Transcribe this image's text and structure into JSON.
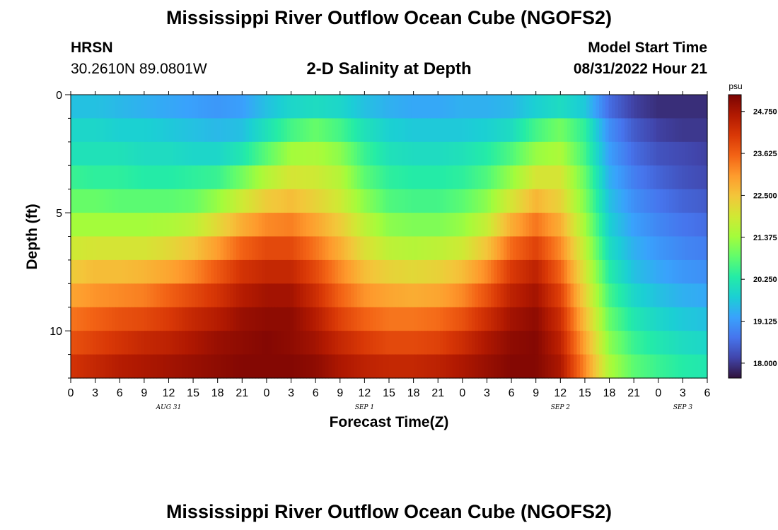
{
  "header": {
    "title": "Mississippi River Outflow Ocean Cube (NGOFS2)",
    "station": "HRSN",
    "coords": "30.2610N  89.0801W",
    "chart_title": "2-D Salinity at Depth",
    "model_label": "Model Start Time",
    "model_time": "08/31/2022 Hour 21"
  },
  "footer": {
    "title": "Mississippi River Outflow Ocean Cube (NGOFS2)"
  },
  "colors": {
    "scale": [
      "#30123b",
      "#4145ab",
      "#4675ed",
      "#39a2fc",
      "#1bcfd4",
      "#24eca6",
      "#61fc6c",
      "#a4fc3b",
      "#d1e834",
      "#f3c63a",
      "#fe9b2d",
      "#f36315",
      "#d93806",
      "#b11901",
      "#7a0403"
    ]
  },
  "chart_data": {
    "type": "heatmap",
    "title": "2-D Salinity at Depth",
    "xlabel": "Forecast Time(Z)",
    "ylabel": "Depth (ft)",
    "x_tick_labels": [
      "0",
      "3",
      "6",
      "9",
      "12",
      "15",
      "18",
      "21",
      "0",
      "3",
      "6",
      "9",
      "12",
      "15",
      "18",
      "21",
      "0",
      "3",
      "6",
      "9",
      "12",
      "15",
      "18",
      "21",
      "0",
      "3",
      "6"
    ],
    "x_range_hours": [
      0,
      78
    ],
    "date_labels": [
      {
        "label": "AUG 31",
        "hour": 12
      },
      {
        "label": "SEP 1",
        "hour": 36
      },
      {
        "label": "SEP 2",
        "hour": 60
      },
      {
        "label": "SEP 3",
        "hour": 75
      }
    ],
    "y_ticks": [
      "0",
      "5",
      "10"
    ],
    "y_range_ft": [
      0,
      12
    ],
    "colorbar": {
      "unit": "psu",
      "ticks": [
        "24.750",
        "23.625",
        "22.500",
        "21.375",
        "20.250",
        "19.125",
        "18.000"
      ],
      "range": [
        17.6,
        25.2
      ]
    },
    "depth_layers_ft": [
      0.5,
      1.5,
      2.5,
      3.5,
      4.5,
      5.5,
      6.5,
      7.5,
      8.5,
      9.5,
      10.5,
      11.5
    ],
    "time_hours": [
      0,
      3,
      6,
      9,
      12,
      15,
      18,
      21,
      24,
      27,
      30,
      33,
      36,
      39,
      42,
      45,
      48,
      51,
      54,
      57,
      60,
      63,
      66,
      69,
      72,
      75,
      78
    ],
    "values": [
      [
        19.6,
        19.6,
        19.5,
        19.4,
        19.3,
        19.2,
        19.1,
        19.2,
        19.6,
        19.9,
        20.0,
        19.9,
        19.6,
        19.4,
        19.3,
        19.3,
        19.4,
        19.4,
        19.5,
        19.8,
        20.0,
        19.7,
        18.6,
        18.1,
        17.9,
        17.9,
        17.9
      ],
      [
        19.9,
        19.9,
        19.8,
        19.8,
        19.7,
        19.6,
        19.5,
        19.6,
        20.1,
        20.6,
        20.9,
        20.6,
        20.1,
        19.8,
        19.7,
        19.7,
        19.7,
        19.8,
        20.0,
        20.6,
        21.0,
        20.4,
        19.0,
        18.4,
        18.1,
        18.0,
        18.0
      ],
      [
        20.1,
        20.1,
        20.1,
        20.0,
        20.0,
        19.9,
        19.9,
        20.2,
        20.8,
        21.4,
        21.5,
        21.2,
        20.5,
        20.1,
        20.0,
        20.0,
        20.1,
        20.3,
        20.7,
        21.3,
        21.5,
        20.6,
        19.2,
        18.6,
        18.3,
        18.2,
        18.1
      ],
      [
        20.5,
        20.4,
        20.4,
        20.3,
        20.3,
        20.4,
        20.5,
        21.0,
        21.6,
        22.0,
        21.9,
        21.6,
        20.8,
        20.4,
        20.3,
        20.3,
        20.4,
        20.7,
        21.3,
        22.0,
        22.0,
        20.9,
        19.4,
        18.8,
        18.5,
        18.3,
        18.2
      ],
      [
        20.9,
        20.9,
        20.8,
        20.8,
        20.8,
        20.9,
        21.3,
        21.9,
        22.4,
        22.6,
        22.3,
        21.9,
        21.2,
        20.7,
        20.6,
        20.6,
        20.8,
        21.2,
        22.0,
        22.7,
        22.3,
        21.1,
        19.6,
        19.0,
        18.7,
        18.5,
        18.4
      ],
      [
        21.4,
        21.4,
        21.4,
        21.4,
        21.5,
        21.7,
        22.2,
        22.8,
        23.2,
        23.3,
        22.9,
        22.4,
        21.7,
        21.2,
        21.1,
        21.1,
        21.3,
        21.8,
        22.8,
        23.4,
        22.8,
        21.4,
        19.8,
        19.2,
        18.9,
        18.7,
        18.6
      ],
      [
        21.9,
        22.0,
        22.0,
        22.0,
        22.2,
        22.5,
        23.0,
        23.6,
        23.9,
        23.9,
        23.4,
        22.8,
        22.1,
        21.7,
        21.6,
        21.7,
        21.9,
        22.5,
        23.5,
        24.0,
        23.2,
        21.7,
        20.0,
        19.4,
        19.1,
        18.9,
        18.8
      ],
      [
        22.4,
        22.6,
        22.6,
        22.7,
        22.9,
        23.2,
        23.7,
        24.2,
        24.4,
        24.4,
        23.9,
        23.2,
        22.6,
        22.3,
        22.2,
        22.3,
        22.6,
        23.2,
        24.1,
        24.5,
        23.6,
        22.0,
        20.3,
        19.6,
        19.3,
        19.1,
        19.0
      ],
      [
        22.9,
        23.1,
        23.2,
        23.3,
        23.6,
        23.9,
        24.2,
        24.6,
        24.8,
        24.8,
        24.3,
        23.6,
        23.1,
        22.9,
        22.8,
        22.9,
        23.2,
        23.8,
        24.5,
        24.8,
        24.0,
        22.3,
        20.6,
        19.9,
        19.6,
        19.4,
        19.3
      ],
      [
        23.4,
        23.6,
        23.8,
        23.9,
        24.1,
        24.4,
        24.6,
        24.9,
        25.0,
        25.0,
        24.6,
        24.0,
        23.6,
        23.4,
        23.4,
        23.5,
        23.8,
        24.3,
        24.8,
        25.0,
        24.3,
        22.6,
        20.9,
        20.2,
        19.9,
        19.7,
        19.6
      ],
      [
        23.8,
        24.0,
        24.2,
        24.4,
        24.5,
        24.7,
        24.9,
        25.0,
        25.1,
        25.0,
        24.8,
        24.4,
        24.1,
        23.9,
        23.9,
        24.0,
        24.3,
        24.7,
        25.0,
        25.1,
        24.5,
        22.9,
        21.2,
        20.5,
        20.2,
        20.0,
        19.9
      ],
      [
        24.2,
        24.4,
        24.6,
        24.7,
        24.8,
        24.9,
        25.0,
        25.1,
        25.1,
        25.1,
        25.0,
        24.7,
        24.5,
        24.4,
        24.4,
        24.5,
        24.7,
        24.9,
        25.1,
        25.1,
        24.7,
        23.2,
        21.5,
        20.8,
        20.5,
        20.3,
        20.2
      ]
    ]
  }
}
